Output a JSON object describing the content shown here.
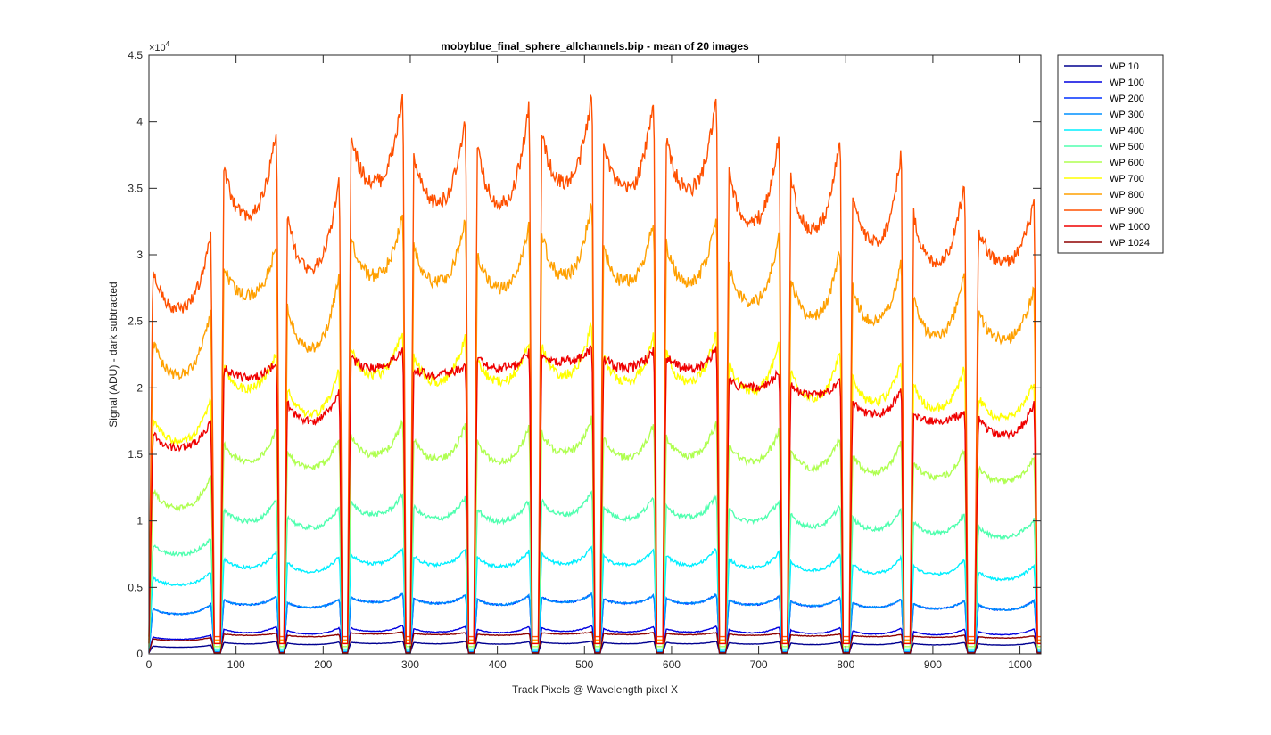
{
  "chart_data": {
    "type": "line",
    "title": "mobyblue_final_sphere_allchannels.bip - mean of 20 images",
    "xlabel": "Track Pixels @ Wavelength pixel X",
    "ylabel": "Signal (ADU) - dark subtracted",
    "y_exponent_label": "×10",
    "y_exponent_power": "4",
    "xlim": [
      0,
      1024
    ],
    "ylim": [
      0,
      45000
    ],
    "xticks": [
      0,
      100,
      200,
      300,
      400,
      500,
      600,
      700,
      800,
      900,
      1000
    ],
    "yticks": [
      0,
      5000,
      10000,
      15000,
      20000,
      25000,
      30000,
      35000,
      40000,
      45000
    ],
    "ytick_labels": [
      "0",
      "0.5",
      "1",
      "1.5",
      "2",
      "2.5",
      "3",
      "3.5",
      "4",
      "4.5"
    ],
    "grid": false,
    "legend_position": "outside-top-right",
    "tracks": [
      {
        "start": 0,
        "end": 75
      },
      {
        "start": 82,
        "end": 150
      },
      {
        "start": 155,
        "end": 222
      },
      {
        "start": 228,
        "end": 295
      },
      {
        "start": 300,
        "end": 367
      },
      {
        "start": 373,
        "end": 440
      },
      {
        "start": 447,
        "end": 512
      },
      {
        "start": 518,
        "end": 583
      },
      {
        "start": 590,
        "end": 655
      },
      {
        "start": 662,
        "end": 727
      },
      {
        "start": 733,
        "end": 797
      },
      {
        "start": 804,
        "end": 867
      },
      {
        "start": 874,
        "end": 940
      },
      {
        "start": 948,
        "end": 1020
      }
    ],
    "series": [
      {
        "name": "WP 10",
        "color": "#00008F",
        "peak_levels": [
          700,
          1000,
          950,
          1000,
          1000,
          980,
          1020,
          1000,
          1000,
          980,
          950,
          940,
          920,
          900
        ],
        "mid_levels": [
          500,
          750,
          700,
          780,
          760,
          740,
          780,
          760,
          760,
          740,
          700,
          700,
          680,
          660
        ]
      },
      {
        "name": "WP 100",
        "color": "#0000DF",
        "peak_levels": [
          1500,
          2200,
          2100,
          2300,
          2200,
          2200,
          2300,
          2200,
          2200,
          2150,
          2100,
          2050,
          2000,
          2000
        ],
        "mid_levels": [
          1100,
          1600,
          1500,
          1700,
          1650,
          1600,
          1700,
          1650,
          1650,
          1600,
          1550,
          1500,
          1450,
          1450
        ]
      },
      {
        "name": "WP 200",
        "color": "#0030FF",
        "peak_levels": [
          3900,
          4500,
          4300,
          4700,
          4600,
          4600,
          4700,
          4600,
          4700,
          4500,
          4400,
          4300,
          4200,
          4200
        ],
        "mid_levels": [
          3000,
          3700,
          3500,
          3900,
          3800,
          3700,
          3900,
          3800,
          3800,
          3700,
          3600,
          3500,
          3400,
          3300
        ]
      },
      {
        "name": "WP 300",
        "color": "#0090FF",
        "peak_levels": [
          3900,
          4500,
          4300,
          4700,
          4600,
          4600,
          4700,
          4600,
          4700,
          4500,
          4400,
          4300,
          4200,
          4200
        ],
        "mid_levels": [
          3000,
          3700,
          3500,
          3900,
          3800,
          3700,
          3900,
          3800,
          3800,
          3700,
          3600,
          3500,
          3400,
          3300
        ]
      },
      {
        "name": "WP 400",
        "color": "#00EFFF",
        "peak_levels": [
          6400,
          8000,
          7700,
          8300,
          8200,
          8100,
          8400,
          8200,
          8300,
          8000,
          7800,
          7600,
          7400,
          7000
        ],
        "mid_levels": [
          5200,
          6500,
          6200,
          6800,
          6700,
          6600,
          6800,
          6700,
          6700,
          6500,
          6300,
          6100,
          6000,
          5600
        ]
      },
      {
        "name": "WP 500",
        "color": "#50FFAF",
        "peak_levels": [
          9000,
          12000,
          11500,
          12500,
          12200,
          12000,
          12800,
          12300,
          12500,
          12000,
          11700,
          11300,
          11000,
          10500
        ],
        "mid_levels": [
          7500,
          10000,
          9500,
          10500,
          10200,
          10000,
          10500,
          10200,
          10300,
          10000,
          9600,
          9400,
          9100,
          8800
        ]
      },
      {
        "name": "WP 600",
        "color": "#AFFF50",
        "peak_levels": [
          14000,
          17500,
          17000,
          18300,
          18000,
          17800,
          18500,
          18000,
          18200,
          17500,
          17000,
          16500,
          16000,
          15300
        ],
        "mid_levels": [
          11000,
          14500,
          14000,
          15000,
          14700,
          14500,
          15200,
          14800,
          14900,
          14500,
          14000,
          13700,
          13300,
          13000
        ]
      },
      {
        "name": "WP 700",
        "color": "#FFFF00",
        "peak_levels": [
          20000,
          23500,
          22500,
          25500,
          25000,
          24500,
          26000,
          25000,
          25500,
          24500,
          24000,
          23000,
          22500,
          21300
        ],
        "mid_levels": [
          16000,
          20000,
          18000,
          21000,
          20500,
          20500,
          21000,
          20500,
          20500,
          19800,
          19200,
          19000,
          18500,
          17800
        ]
      },
      {
        "name": "WP 800",
        "color": "#FFA000",
        "peak_levels": [
          26900,
          31800,
          30300,
          34500,
          34000,
          33500,
          35800,
          34000,
          34500,
          33000,
          32000,
          31000,
          30000,
          28500
        ],
        "mid_levels": [
          21000,
          27000,
          23000,
          28500,
          28000,
          27500,
          28500,
          28000,
          28000,
          26500,
          25500,
          25000,
          24000,
          23700
        ]
      },
      {
        "name": "WP 900",
        "color": "#FF5000",
        "peak_levels": [
          33000,
          41200,
          37800,
          43900,
          41700,
          43400,
          44200,
          43800,
          43800,
          41000,
          41000,
          39700,
          37500,
          35200
        ],
        "mid_levels": [
          26000,
          33000,
          29000,
          35500,
          34000,
          34000,
          35500,
          35000,
          35000,
          32500,
          32000,
          31000,
          29500,
          29500
        ]
      },
      {
        "name": "WP 1000",
        "color": "#EF0000",
        "peak_levels": [
          18000,
          22400,
          20500,
          23500,
          22000,
          23000,
          23300,
          23300,
          23300,
          21500,
          21000,
          20500,
          18500,
          19400
        ],
        "mid_levels": [
          15500,
          20800,
          17500,
          21500,
          21000,
          21500,
          22000,
          21500,
          21500,
          20000,
          19500,
          18000,
          17500,
          16500
        ]
      },
      {
        "name": "WP 1024",
        "color": "#8F0000",
        "peak_levels": [
          1300,
          1600,
          1500,
          1700,
          1650,
          1600,
          1700,
          1650,
          1650,
          1600,
          1550,
          1500,
          1450,
          1400
        ],
        "mid_levels": [
          1000,
          1400,
          1300,
          1500,
          1450,
          1400,
          1500,
          1450,
          1450,
          1400,
          1350,
          1300,
          1250,
          1200
        ]
      }
    ]
  }
}
